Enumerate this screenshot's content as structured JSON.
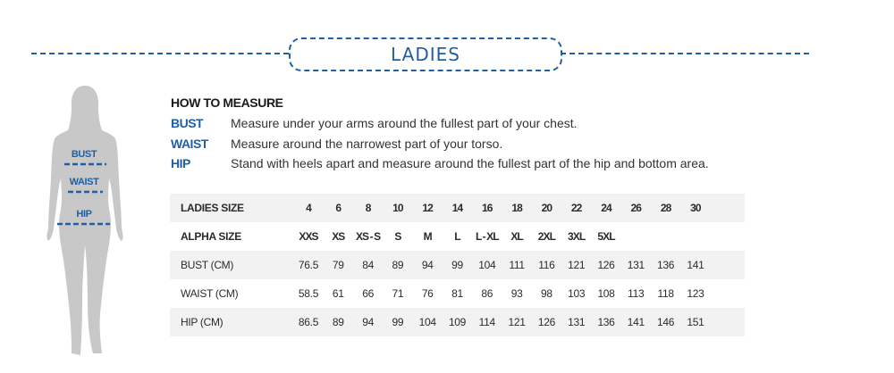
{
  "header": {
    "title": "LADIES"
  },
  "figure": {
    "labels": [
      "BUST",
      "WAIST",
      "HIP"
    ]
  },
  "how_to_measure": {
    "heading": "HOW TO MEASURE",
    "items": [
      {
        "label": "BUST",
        "description": "Measure under your arms around the fullest part of your chest."
      },
      {
        "label": "WAIST",
        "description": "Measure around the narrowest part of your torso."
      },
      {
        "label": "HIP",
        "description": "Stand with heels apart and measure around the fullest part of the hip and bottom area."
      }
    ]
  },
  "size_table": {
    "rows": [
      {
        "header": "LADIES SIZE",
        "bold": true,
        "values": [
          "4",
          "6",
          "8",
          "10",
          "12",
          "14",
          "16",
          "18",
          "20",
          "22",
          "24",
          "26",
          "28",
          "30"
        ]
      },
      {
        "header": "ALPHA SIZE",
        "bold": true,
        "values": [
          "XXS",
          "XS",
          "XS - S",
          "S",
          "M",
          "L",
          "L - XL",
          "XL",
          "2XL",
          "3XL",
          "5XL",
          "",
          "",
          ""
        ]
      },
      {
        "header": "BUST (CM)",
        "bold": false,
        "values": [
          "76.5",
          "79",
          "84",
          "89",
          "94",
          "99",
          "104",
          "111",
          "116",
          "121",
          "126",
          "131",
          "136",
          "141"
        ]
      },
      {
        "header": "WAIST (CM)",
        "bold": false,
        "values": [
          "58.5",
          "61",
          "66",
          "71",
          "76",
          "81",
          "86",
          "93",
          "98",
          "103",
          "108",
          "113",
          "118",
          "123"
        ]
      },
      {
        "header": "HIP (CM)",
        "bold": false,
        "values": [
          "86.5",
          "89",
          "94",
          "99",
          "104",
          "109",
          "114",
          "121",
          "126",
          "131",
          "136",
          "141",
          "146",
          "151"
        ]
      }
    ]
  },
  "colors": {
    "accent": "#1f5fa6",
    "silhouette": "#c8c8c8",
    "row_shade": "#f2f2f2"
  }
}
